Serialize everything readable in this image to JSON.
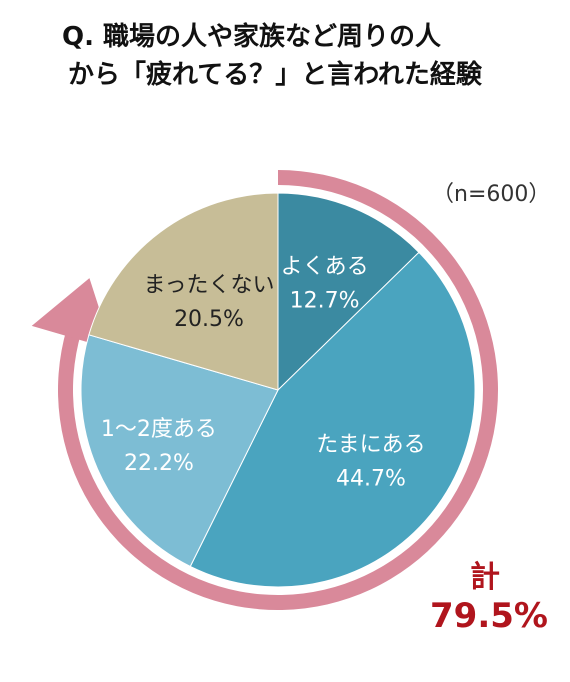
{
  "title": {
    "line1": "Q. 職場の人や家族など周りの人",
    "line2": "から「疲れてる？」と言われた経験"
  },
  "sample": "（n=600）",
  "total": {
    "label": "計",
    "value": "79.5%"
  },
  "chart_data": {
    "type": "pie",
    "unit": "%",
    "slices": [
      {
        "label": "よくある",
        "value": 12.7,
        "value_text": "12.7%",
        "color": "#3b8aa1"
      },
      {
        "label": "たまにある",
        "value": 44.7,
        "value_text": "44.7%",
        "color": "#4aa4bf"
      },
      {
        "label": "1～2度ある",
        "value": 22.2,
        "value_text": "22.2%",
        "color": "#7dbdd4"
      },
      {
        "label": "まったくない",
        "value": 20.5,
        "value_text": "20.5%",
        "color": "#c7bd97"
      }
    ],
    "arrow_color": "#d9899a",
    "start": "12-o-clock",
    "direction": "clockwise"
  }
}
